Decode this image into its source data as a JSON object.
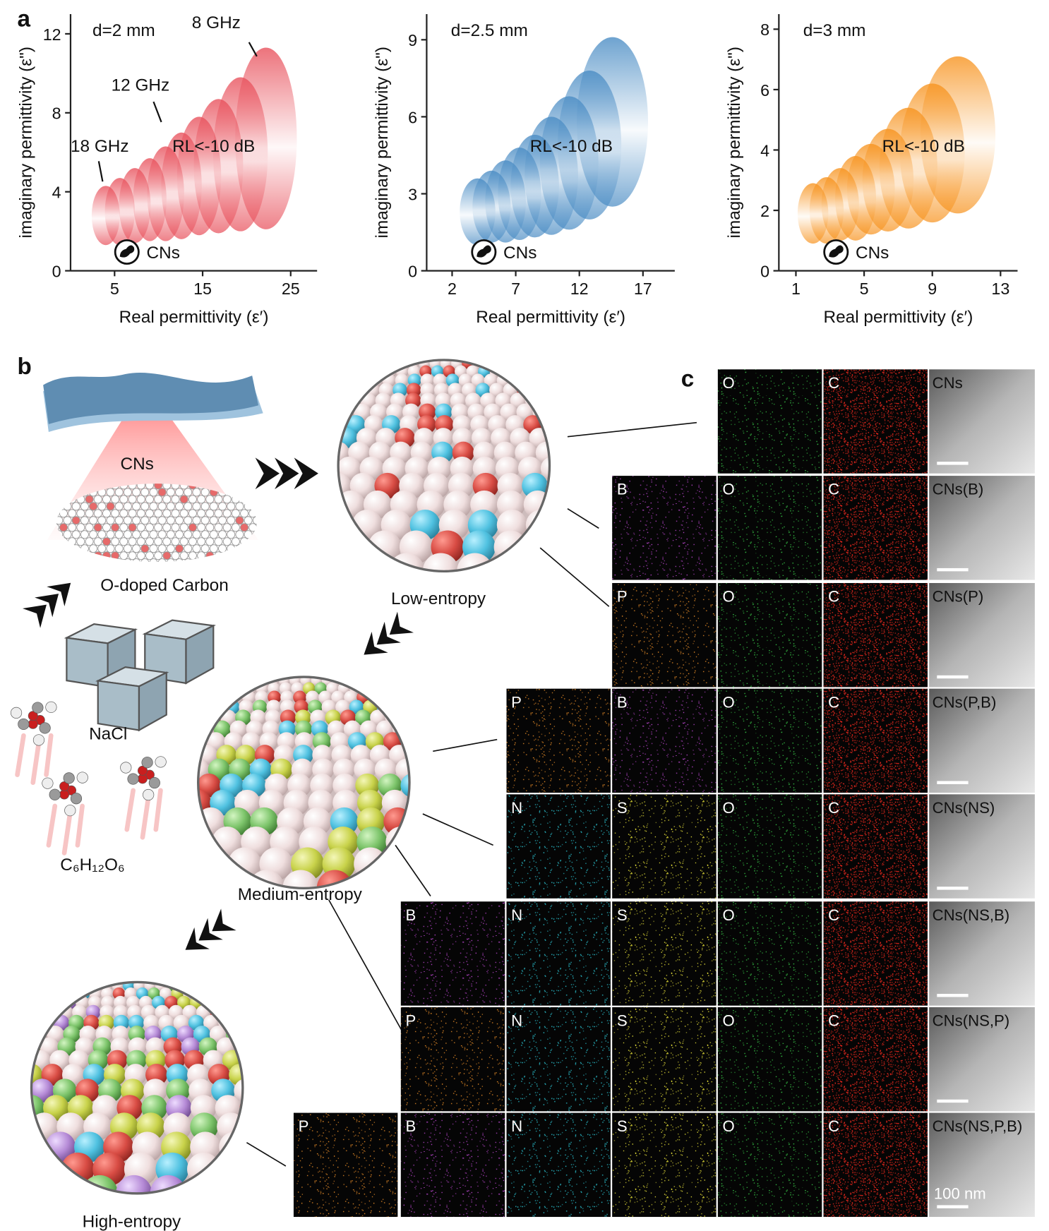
{
  "chart_data": [
    {
      "type": "ellipse",
      "label": "a",
      "annotation": "d=2 mm",
      "region_label": "RL<-10 dB",
      "marker_label": "CNs",
      "frequency_labels": [
        "8 GHz",
        "12 GHz",
        "18 GHz"
      ],
      "xlabel": "Real permittivity (ε′)",
      "ylabel": "imaginary permittivity (ε\")",
      "xlim": [
        0,
        28
      ],
      "ylim": [
        0,
        13
      ],
      "xticks": [
        5,
        15,
        25
      ],
      "yticks": [
        0,
        4,
        8,
        12
      ],
      "color": "#e8505b",
      "x": [
        4.0,
        5.6,
        7.3,
        9.0,
        10.8,
        12.6,
        14.6,
        16.8,
        19.3,
        22.2
      ],
      "values": [
        2.8,
        3.0,
        3.3,
        3.6,
        3.9,
        4.3,
        4.8,
        5.3,
        5.9,
        6.7
      ],
      "rx": [
        1.6,
        1.7,
        1.8,
        1.9,
        2.1,
        2.3,
        2.5,
        2.8,
        3.1,
        3.5
      ],
      "ry": [
        1.5,
        1.7,
        1.9,
        2.1,
        2.4,
        2.7,
        3.0,
        3.4,
        3.9,
        4.6
      ]
    },
    {
      "type": "ellipse",
      "annotation": "d=2.5 mm",
      "region_label": "RL<-10 dB",
      "marker_label": "CNs",
      "xlabel": "Real permittivity (ε′)",
      "ylabel": "imaginary permittivity (ε\")",
      "xlim": [
        0,
        19.5
      ],
      "ylim": [
        0,
        10
      ],
      "xticks": [
        2,
        7,
        12,
        17
      ],
      "yticks": [
        0,
        3,
        6,
        9
      ],
      "color": "#4a8cc4",
      "x": [
        4.0,
        5.1,
        6.2,
        7.3,
        8.5,
        9.8,
        11.2,
        12.8,
        14.6
      ],
      "values": [
        2.3,
        2.5,
        2.7,
        3.0,
        3.3,
        3.7,
        4.2,
        4.9,
        5.8
      ],
      "rx": [
        1.4,
        1.5,
        1.6,
        1.7,
        1.9,
        2.1,
        2.3,
        2.5,
        2.8
      ],
      "ry": [
        1.3,
        1.4,
        1.6,
        1.8,
        2.0,
        2.3,
        2.6,
        2.9,
        3.3
      ]
    },
    {
      "type": "ellipse",
      "annotation": "d=3 mm",
      "region_label": "RL<-10 dB",
      "marker_label": "CNs",
      "xlabel": "Real permittivity (ε′)",
      "ylabel": "imaginary permittivity (ε\")",
      "xlim": [
        0,
        14
      ],
      "ylim": [
        0,
        8.5
      ],
      "xticks": [
        1,
        5,
        9,
        13
      ],
      "yticks": [
        0,
        2,
        4,
        6,
        8
      ],
      "color": "#f7931e",
      "x": [
        2.0,
        2.8,
        3.6,
        4.5,
        5.4,
        6.4,
        7.6,
        9.0,
        10.5
      ],
      "values": [
        1.9,
        2.0,
        2.2,
        2.4,
        2.7,
        3.0,
        3.4,
        3.9,
        4.5
      ],
      "rx": [
        0.9,
        1.0,
        1.1,
        1.2,
        1.4,
        1.5,
        1.7,
        1.9,
        2.2
      ],
      "ry": [
        1.0,
        1.1,
        1.2,
        1.4,
        1.5,
        1.7,
        2.0,
        2.3,
        2.6
      ]
    }
  ],
  "panel_b": {
    "label": "b",
    "sheet_label": "CNs",
    "carbon_label": "O-doped Carbon",
    "low_entropy": "Low-entropy",
    "salt": "NaCl",
    "glucose": "C₆H₁₂O₆",
    "medium_entropy": "Medium-entropy",
    "high_entropy": "High-entropy"
  },
  "panel_c": {
    "label": "c",
    "scale_bar": "100 nm",
    "rows": [
      {
        "maps": [
          "O",
          "C"
        ],
        "sample": "CNs"
      },
      {
        "maps": [
          "B",
          "O",
          "C"
        ],
        "sample": "CNs(B)"
      },
      {
        "maps": [
          "P",
          "O",
          "C"
        ],
        "sample": "CNs(P)"
      },
      {
        "maps": [
          "P",
          "B",
          "O",
          "C"
        ],
        "sample": "CNs(P,B)"
      },
      {
        "maps": [
          "N",
          "S",
          "O",
          "C"
        ],
        "sample": "CNs(NS)"
      },
      {
        "maps": [
          "B",
          "N",
          "S",
          "O",
          "C"
        ],
        "sample": "CNs(NS,B)"
      },
      {
        "maps": [
          "P",
          "N",
          "S",
          "O",
          "C"
        ],
        "sample": "CNs(NS,P)"
      },
      {
        "maps": [
          "P",
          "B",
          "N",
          "S",
          "O",
          "C"
        ],
        "sample": "CNs(NS,P,B)"
      }
    ]
  }
}
